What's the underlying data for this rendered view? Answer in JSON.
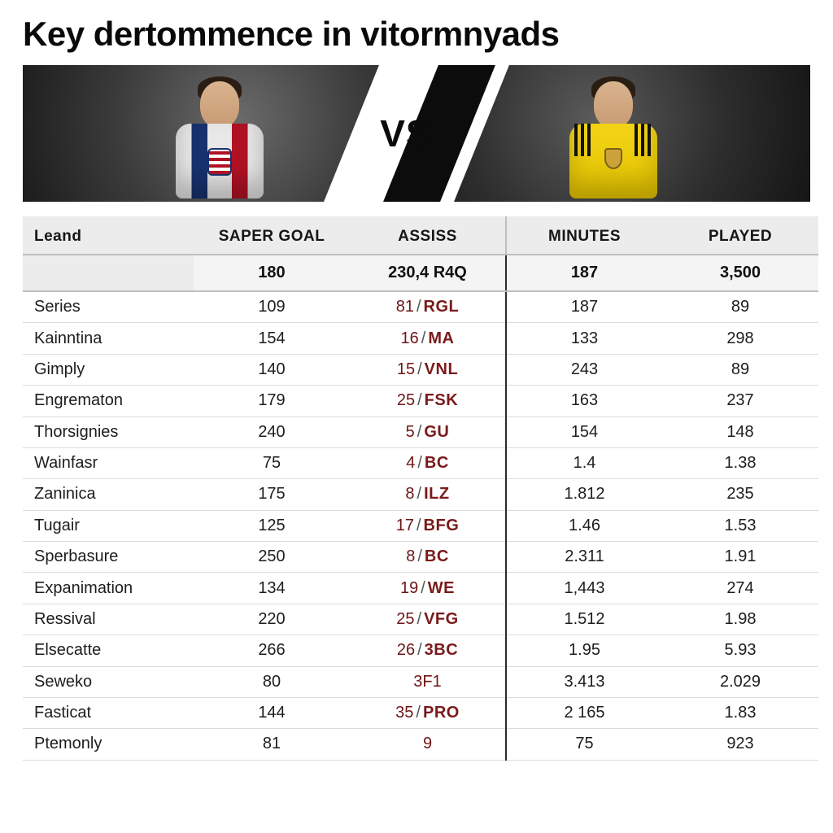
{
  "title": "Key dertommence in vitormnyads",
  "vs_label": "VS.",
  "banner": {
    "left_bg": "#2f2f2f",
    "right_bg": "#232323",
    "diag_white": "#ffffff",
    "diag_black": "#0c0c0c",
    "player_left_jersey_colors": [
      "#e8e8e8",
      "#17326e",
      "#b01224"
    ],
    "player_right_jersey_color": "#f4d516"
  },
  "table": {
    "type": "table",
    "header_bg": "#ececec",
    "row_border": "#dcdcdc",
    "heavy_divider": "#2a2a2a",
    "assist_color": "#7a1a1a",
    "fontsize_header": 19,
    "fontsize_body": 20,
    "columns": {
      "name_label": "Leand",
      "saper_goal": "SAPER GOAL",
      "assiss": "ASSISS",
      "minutes": "MINUTES",
      "played": "PLAYED"
    },
    "totals": {
      "saper_goal": "180",
      "assiss": "230,4 R4Q",
      "minutes": "187",
      "played": "3,500"
    },
    "rows": [
      {
        "name": "Series",
        "saper_goal": "109",
        "assist_n": "81",
        "assist_code": "RGL",
        "minutes": "187",
        "played": "89"
      },
      {
        "name": "Kainntina",
        "saper_goal": "154",
        "assist_n": "16",
        "assist_code": "MA",
        "minutes": "133",
        "played": "298"
      },
      {
        "name": "Gimply",
        "saper_goal": "140",
        "assist_n": "15",
        "assist_code": "VNL",
        "minutes": "243",
        "played": "89"
      },
      {
        "name": "Engrematon",
        "saper_goal": "179",
        "assist_n": "25",
        "assist_code": "FSK",
        "minutes": "163",
        "played": "237"
      },
      {
        "name": "Thorsignies",
        "saper_goal": "240",
        "assist_n": "5",
        "assist_code": "GU",
        "minutes": "154",
        "played": "148"
      },
      {
        "name": "Wainfasr",
        "saper_goal": "75",
        "assist_n": "4",
        "assist_code": "BC",
        "minutes": "1.4",
        "played": "1.38"
      },
      {
        "name": "Zaninica",
        "saper_goal": "175",
        "assist_n": "8",
        "assist_code": "ILZ",
        "minutes": "1.812",
        "played": "235"
      },
      {
        "name": "Tugair",
        "saper_goal": "125",
        "assist_n": "17",
        "assist_code": "BFG",
        "minutes": "1.46",
        "played": "1.53"
      },
      {
        "name": "Sperbasure",
        "saper_goal": "250",
        "assist_n": "8",
        "assist_code": "BC",
        "minutes": "2.311",
        "played": "1.91"
      },
      {
        "name": "Expanimation",
        "saper_goal": "134",
        "assist_n": "19",
        "assist_code": "WE",
        "minutes": "1,443",
        "played": "274"
      },
      {
        "name": "Ressival",
        "saper_goal": "220",
        "assist_n": "25",
        "assist_code": "VFG",
        "minutes": "1.512",
        "played": "1.98"
      },
      {
        "name": "Elsecatte",
        "saper_goal": "266",
        "assist_n": "26",
        "assist_code": "3BC",
        "minutes": "1.95",
        "played": "5.93"
      },
      {
        "name": "Seweko",
        "saper_goal": "80",
        "assist_n": "3F1",
        "assist_code": "",
        "minutes": "3.413",
        "played": "2.029"
      },
      {
        "name": "Fasticat",
        "saper_goal": "144",
        "assist_n": "35",
        "assist_code": "PRO",
        "minutes": "2 165",
        "played": "1.83"
      },
      {
        "name": "Ptemonly",
        "saper_goal": "81",
        "assist_n": "9",
        "assist_code": "",
        "minutes": "75",
        "played": "923"
      }
    ]
  }
}
